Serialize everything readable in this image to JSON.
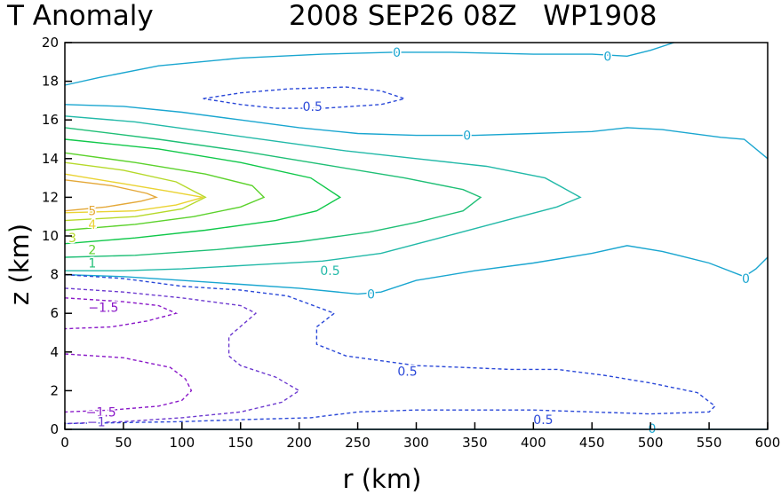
{
  "chart_data": {
    "type": "contour",
    "title_left": "T Anomaly",
    "title_right": "2008 SEP26 08Z   WP1908",
    "xlabel": "r (km)",
    "ylabel": "z (km)",
    "xlim": [
      0,
      600
    ],
    "ylim": [
      0,
      20
    ],
    "xticks": [
      "0",
      "50",
      "100",
      "150",
      "200",
      "250",
      "300",
      "350",
      "400",
      "450",
      "500",
      "550",
      "600"
    ],
    "yticks": [
      "0",
      "2",
      "4",
      "6",
      "8",
      "10",
      "12",
      "14",
      "16",
      "18",
      "20"
    ],
    "contours": [
      {
        "level": 0,
        "color": "#1aa6d0",
        "dashed": false,
        "points": [
          [
            0,
            17.8
          ],
          [
            30,
            18.2
          ],
          [
            80,
            18.8
          ],
          [
            150,
            19.2
          ],
          [
            220,
            19.4
          ],
          [
            280,
            19.5
          ],
          [
            330,
            19.5
          ],
          [
            400,
            19.4
          ],
          [
            450,
            19.4
          ],
          [
            480,
            19.3
          ],
          [
            500,
            19.6
          ],
          [
            520,
            20
          ]
        ]
      },
      {
        "level": -0.5,
        "color": "#2a48d8",
        "dashed": true,
        "points": [
          [
            118,
            17.1
          ],
          [
            150,
            17.4
          ],
          [
            190,
            17.6
          ],
          [
            240,
            17.7
          ],
          [
            270,
            17.5
          ],
          [
            290,
            17.1
          ],
          [
            270,
            16.8
          ],
          [
            220,
            16.6
          ],
          [
            180,
            16.6
          ],
          [
            150,
            16.8
          ],
          [
            118,
            17.1
          ]
        ]
      },
      {
        "level": 0,
        "color": "#1aa6d0",
        "dashed": false,
        "points": [
          [
            0,
            16.8
          ],
          [
            50,
            16.7
          ],
          [
            100,
            16.4
          ],
          [
            150,
            16.0
          ],
          [
            200,
            15.6
          ],
          [
            250,
            15.3
          ],
          [
            300,
            15.2
          ],
          [
            350,
            15.2
          ],
          [
            400,
            15.3
          ],
          [
            450,
            15.4
          ],
          [
            480,
            15.6
          ],
          [
            510,
            15.5
          ],
          [
            560,
            15.1
          ],
          [
            580,
            15.0
          ],
          [
            600,
            14.0
          ]
        ]
      },
      {
        "level": 0,
        "color": "#1aa6d0",
        "dashed": false,
        "points": [
          [
            600,
            8.9
          ],
          [
            590,
            8.3
          ],
          [
            580,
            7.9
          ],
          [
            550,
            8.6
          ],
          [
            510,
            9.2
          ],
          [
            480,
            9.5
          ],
          [
            450,
            9.1
          ],
          [
            400,
            8.6
          ],
          [
            350,
            8.2
          ],
          [
            300,
            7.7
          ],
          [
            270,
            7.1
          ],
          [
            250,
            7.0
          ],
          [
            200,
            7.3
          ],
          [
            150,
            7.5
          ],
          [
            100,
            7.7
          ],
          [
            50,
            7.9
          ],
          [
            0,
            8.0
          ]
        ]
      },
      {
        "level": 0.5,
        "color": "#22b9a8",
        "dashed": false,
        "points": [
          [
            0,
            16.2
          ],
          [
            60,
            15.9
          ],
          [
            120,
            15.4
          ],
          [
            180,
            14.9
          ],
          [
            240,
            14.4
          ],
          [
            300,
            14.0
          ],
          [
            360,
            13.6
          ],
          [
            410,
            13.0
          ],
          [
            440,
            12.0
          ],
          [
            420,
            11.5
          ],
          [
            370,
            10.7
          ],
          [
            320,
            9.9
          ],
          [
            270,
            9.1
          ],
          [
            220,
            8.7
          ],
          [
            160,
            8.5
          ],
          [
            100,
            8.3
          ],
          [
            50,
            8.2
          ],
          [
            0,
            8.2
          ]
        ]
      },
      {
        "level": 1,
        "color": "#1fbf76",
        "dashed": false,
        "points": [
          [
            0,
            15.6
          ],
          [
            80,
            15.0
          ],
          [
            150,
            14.4
          ],
          [
            220,
            13.7
          ],
          [
            290,
            13.0
          ],
          [
            340,
            12.4
          ],
          [
            355,
            12.0
          ],
          [
            340,
            11.3
          ],
          [
            300,
            10.7
          ],
          [
            260,
            10.2
          ],
          [
            200,
            9.7
          ],
          [
            130,
            9.3
          ],
          [
            60,
            9.0
          ],
          [
            0,
            8.9
          ]
        ]
      },
      {
        "level": 1.5,
        "color": "#10c84a",
        "dashed": false,
        "points": [
          [
            0,
            15.0
          ],
          [
            80,
            14.5
          ],
          [
            150,
            13.8
          ],
          [
            210,
            13.0
          ],
          [
            235,
            12.0
          ],
          [
            215,
            11.3
          ],
          [
            180,
            10.8
          ],
          [
            120,
            10.3
          ],
          [
            60,
            9.9
          ],
          [
            0,
            9.6
          ]
        ]
      },
      {
        "level": 2,
        "color": "#5cd22c",
        "dashed": false,
        "points": [
          [
            0,
            14.3
          ],
          [
            60,
            13.8
          ],
          [
            120,
            13.2
          ],
          [
            160,
            12.6
          ],
          [
            170,
            12.0
          ],
          [
            150,
            11.5
          ],
          [
            110,
            11.0
          ],
          [
            60,
            10.6
          ],
          [
            0,
            10.3
          ]
        ]
      },
      {
        "level": 3,
        "color": "#b6d92a",
        "dashed": false,
        "points": [
          [
            0,
            13.8
          ],
          [
            50,
            13.4
          ],
          [
            95,
            12.8
          ],
          [
            120,
            12.0
          ],
          [
            100,
            11.4
          ],
          [
            60,
            11.0
          ],
          [
            0,
            10.8
          ]
        ]
      },
      {
        "level": 4,
        "color": "#ead333",
        "dashed": false,
        "points": [
          [
            0,
            13.2
          ],
          [
            50,
            12.7
          ],
          [
            90,
            12.3
          ],
          [
            118,
            12.0
          ],
          [
            95,
            11.6
          ],
          [
            60,
            11.3
          ],
          [
            0,
            11.2
          ]
        ]
      },
      {
        "level": 5,
        "color": "#e4a838",
        "dashed": false,
        "points": [
          [
            0,
            12.9
          ],
          [
            40,
            12.6
          ],
          [
            70,
            12.2
          ],
          [
            78,
            12.0
          ],
          [
            65,
            11.8
          ],
          [
            35,
            11.5
          ],
          [
            0,
            11.3
          ]
        ]
      },
      {
        "level": -0.5,
        "color": "#2a48d8",
        "dashed": true,
        "points": [
          [
            0,
            8.0
          ],
          [
            50,
            7.8
          ],
          [
            100,
            7.4
          ],
          [
            150,
            7.2
          ],
          [
            190,
            6.9
          ],
          [
            230,
            6.0
          ],
          [
            215,
            5.3
          ],
          [
            215,
            4.4
          ],
          [
            240,
            3.8
          ],
          [
            300,
            3.3
          ],
          [
            340,
            3.2
          ],
          [
            380,
            3.1
          ],
          [
            420,
            3.1
          ],
          [
            460,
            2.8
          ],
          [
            500,
            2.4
          ],
          [
            540,
            1.9
          ],
          [
            555,
            1.2
          ],
          [
            550,
            0.9
          ],
          [
            500,
            0.8
          ],
          [
            450,
            0.9
          ],
          [
            400,
            1.0
          ],
          [
            350,
            1.0
          ],
          [
            300,
            1.0
          ],
          [
            250,
            0.9
          ],
          [
            210,
            0.6
          ],
          [
            150,
            0.5
          ],
          [
            100,
            0.4
          ],
          [
            0,
            0.3
          ]
        ]
      },
      {
        "level": -1,
        "color": "#6d3ad0",
        "dashed": true,
        "points": [
          [
            0,
            7.3
          ],
          [
            50,
            7.1
          ],
          [
            100,
            6.8
          ],
          [
            150,
            6.4
          ],
          [
            163,
            6.0
          ],
          [
            140,
            4.8
          ],
          [
            140,
            3.8
          ],
          [
            150,
            3.3
          ],
          [
            180,
            2.7
          ],
          [
            200,
            2.0
          ],
          [
            185,
            1.4
          ],
          [
            150,
            0.9
          ],
          [
            100,
            0.6
          ],
          [
            50,
            0.4
          ],
          [
            0,
            0.3
          ]
        ]
      },
      {
        "level": -1.5,
        "color": "#8a18c8",
        "dashed": true,
        "points": [
          [
            0,
            6.8
          ],
          [
            50,
            6.6
          ],
          [
            80,
            6.4
          ],
          [
            95,
            6.0
          ],
          [
            70,
            5.6
          ],
          [
            40,
            5.3
          ],
          [
            0,
            5.2
          ]
        ]
      },
      {
        "level": -1.5,
        "color": "#8a18c8",
        "dashed": true,
        "points": [
          [
            0,
            3.9
          ],
          [
            50,
            3.7
          ],
          [
            90,
            3.2
          ],
          [
            103,
            2.6
          ],
          [
            108,
            2.0
          ],
          [
            100,
            1.5
          ],
          [
            80,
            1.2
          ],
          [
            40,
            1.0
          ],
          [
            0,
            0.9
          ]
        ]
      },
      {
        "level": 0,
        "color": "#1aa6d0",
        "dashed": false,
        "points": [
          [
            0,
            0
          ],
          [
            600,
            0
          ]
        ]
      }
    ],
    "labels": [
      {
        "text": "0",
        "r": 280,
        "z": 19.5,
        "color": "#1aa6d0"
      },
      {
        "text": "0",
        "r": 460,
        "z": 19.3,
        "color": "#1aa6d0"
      },
      {
        "text": "0.5",
        "r": 203,
        "z": 16.7,
        "color": "#2a48d8"
      },
      {
        "text": "0",
        "r": 340,
        "z": 15.2,
        "color": "#1aa6d0"
      },
      {
        "text": "5",
        "r": 20,
        "z": 11.3,
        "color": "#e4a838"
      },
      {
        "text": "4",
        "r": 20,
        "z": 10.6,
        "color": "#ead333"
      },
      {
        "text": "3",
        "r": 3,
        "z": 9.9,
        "color": "#b6d92a"
      },
      {
        "text": "2",
        "r": 20,
        "z": 9.3,
        "color": "#5cd22c"
      },
      {
        "text": "1",
        "r": 20,
        "z": 8.6,
        "color": "#1fbf76"
      },
      {
        "text": "0.5",
        "r": 218,
        "z": 8.2,
        "color": "#22b9a8"
      },
      {
        "text": "0",
        "r": 258,
        "z": 7.0,
        "color": "#1aa6d0"
      },
      {
        "text": "0",
        "r": 578,
        "z": 7.8,
        "color": "#1aa6d0"
      },
      {
        "text": "−1.5",
        "r": 20,
        "z": 6.3,
        "color": "#8a18c8"
      },
      {
        "text": "0.5",
        "r": 284,
        "z": 3.0,
        "color": "#2a48d8"
      },
      {
        "text": "−1.5",
        "r": 18,
        "z": 0.9,
        "color": "#8a18c8"
      },
      {
        "text": "−1",
        "r": 19,
        "z": 0.4,
        "color": "#6d3ad0"
      },
      {
        "text": "0.5",
        "r": 400,
        "z": 0.5,
        "color": "#2a48d8"
      },
      {
        "text": "0",
        "r": 498,
        "z": 0.05,
        "color": "#1aa6d0"
      }
    ]
  }
}
